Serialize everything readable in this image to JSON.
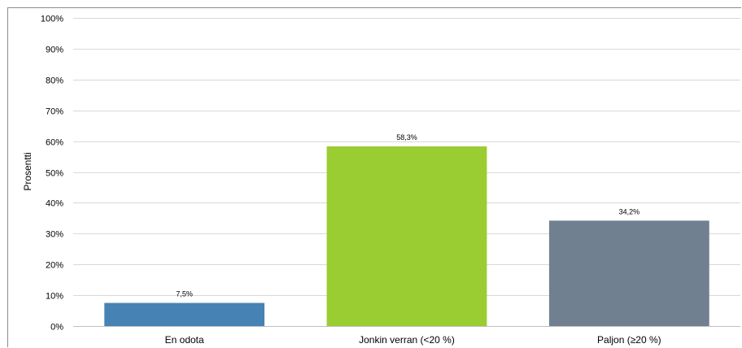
{
  "chart_data": {
    "type": "bar",
    "title": "",
    "xlabel": "",
    "ylabel": "Prosentti",
    "categories": [
      "En odota",
      "Jonkin verran (<20 %)",
      "Paljon (≥20 %)"
    ],
    "values": [
      7.5,
      58.3,
      34.2
    ],
    "data_labels": [
      "7,5%",
      "58,3%",
      "34,2%"
    ],
    "bar_colors": [
      "#4682b4",
      "#9acd32",
      "#708090"
    ],
    "ylim": [
      0,
      100
    ],
    "yticks": [
      0,
      10,
      20,
      30,
      40,
      50,
      60,
      70,
      80,
      90,
      100
    ],
    "ytick_labels": [
      "0%",
      "10%",
      "20%",
      "30%",
      "40%",
      "50%",
      "60%",
      "70%",
      "80%",
      "90%",
      "100%"
    ],
    "grid": true,
    "legend": "none"
  }
}
